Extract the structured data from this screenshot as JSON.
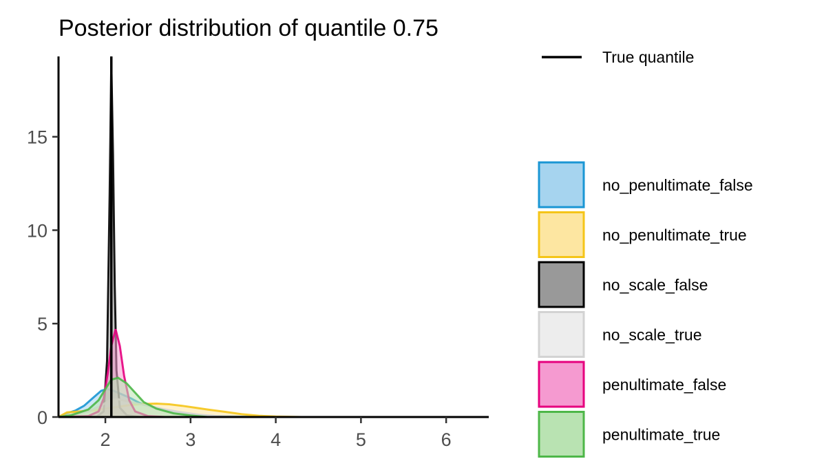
{
  "chart_data": {
    "type": "area",
    "title": "Posterior distribution of quantile 0.75",
    "xlabel": "",
    "ylabel": "",
    "xlim": [
      1.45,
      6.5
    ],
    "ylim": [
      0,
      19.3
    ],
    "x_ticks": [
      2,
      3,
      4,
      5,
      6
    ],
    "y_ticks": [
      0,
      5,
      10,
      15
    ],
    "grid": false,
    "legend_position": "right",
    "true_quantile": {
      "label": "True quantile",
      "x": 2.07,
      "color": "#000000"
    },
    "series": [
      {
        "name": "no_penultimate_false",
        "color": "#1a96d4",
        "fill": "#a6d4ef",
        "points": [
          [
            1.45,
            0.0
          ],
          [
            1.55,
            0.2
          ],
          [
            1.65,
            0.35
          ],
          [
            1.75,
            0.6
          ],
          [
            1.85,
            1.0
          ],
          [
            1.95,
            1.4
          ],
          [
            2.02,
            1.5
          ],
          [
            2.1,
            1.4
          ],
          [
            2.2,
            1.2
          ],
          [
            2.3,
            1.0
          ],
          [
            2.4,
            0.75
          ],
          [
            2.6,
            0.45
          ],
          [
            2.8,
            0.25
          ],
          [
            3.0,
            0.12
          ],
          [
            3.3,
            0.05
          ],
          [
            3.6,
            0.02
          ],
          [
            4.0,
            0.0
          ]
        ]
      },
      {
        "name": "no_penultimate_true",
        "color": "#f5c518",
        "fill": "#fde6a1",
        "points": [
          [
            1.45,
            0.0
          ],
          [
            1.55,
            0.25
          ],
          [
            1.7,
            0.3
          ],
          [
            1.85,
            0.35
          ],
          [
            2.0,
            0.45
          ],
          [
            2.15,
            0.55
          ],
          [
            2.3,
            0.65
          ],
          [
            2.45,
            0.7
          ],
          [
            2.6,
            0.72
          ],
          [
            2.75,
            0.68
          ],
          [
            2.9,
            0.6
          ],
          [
            3.05,
            0.5
          ],
          [
            3.2,
            0.4
          ],
          [
            3.4,
            0.28
          ],
          [
            3.6,
            0.15
          ],
          [
            3.8,
            0.07
          ],
          [
            4.0,
            0.03
          ],
          [
            4.3,
            0.0
          ]
        ]
      },
      {
        "name": "no_scale_false",
        "color": "#000000",
        "fill": "#999999",
        "points": [
          [
            1.45,
            0.0
          ],
          [
            1.9,
            0.02
          ],
          [
            1.98,
            0.3
          ],
          [
            2.02,
            3.0
          ],
          [
            2.05,
            12.0
          ],
          [
            2.07,
            19.0
          ],
          [
            2.09,
            14.0
          ],
          [
            2.11,
            7.0
          ],
          [
            2.13,
            2.5
          ],
          [
            2.17,
            0.5
          ],
          [
            2.25,
            0.1
          ],
          [
            2.4,
            0.0
          ]
        ]
      },
      {
        "name": "no_scale_true",
        "color": "#d3d3d3",
        "fill": "#ededed",
        "points": [
          [
            1.45,
            0.0
          ],
          [
            1.6,
            0.1
          ],
          [
            1.8,
            0.3
          ],
          [
            1.95,
            0.6
          ],
          [
            2.05,
            0.9
          ],
          [
            2.15,
            0.95
          ],
          [
            2.3,
            0.8
          ],
          [
            2.5,
            0.6
          ],
          [
            2.7,
            0.4
          ],
          [
            2.9,
            0.25
          ],
          [
            3.1,
            0.12
          ],
          [
            3.3,
            0.05
          ],
          [
            3.6,
            0.0
          ]
        ]
      },
      {
        "name": "penultimate_false",
        "color": "#e6007e",
        "fill": "#f59ad0",
        "points": [
          [
            1.45,
            0.0
          ],
          [
            1.8,
            0.05
          ],
          [
            1.92,
            0.3
          ],
          [
            1.98,
            1.0
          ],
          [
            2.03,
            2.4
          ],
          [
            2.07,
            3.8
          ],
          [
            2.12,
            4.7
          ],
          [
            2.17,
            3.8
          ],
          [
            2.22,
            2.2
          ],
          [
            2.28,
            0.9
          ],
          [
            2.35,
            0.3
          ],
          [
            2.5,
            0.05
          ],
          [
            2.7,
            0.0
          ]
        ]
      },
      {
        "name": "penultimate_true",
        "color": "#4db748",
        "fill": "#b9e3b2",
        "points": [
          [
            1.45,
            0.0
          ],
          [
            1.6,
            0.1
          ],
          [
            1.8,
            0.4
          ],
          [
            1.92,
            0.9
          ],
          [
            2.0,
            1.5
          ],
          [
            2.07,
            2.0
          ],
          [
            2.15,
            2.1
          ],
          [
            2.25,
            1.8
          ],
          [
            2.35,
            1.3
          ],
          [
            2.45,
            0.8
          ],
          [
            2.6,
            0.45
          ],
          [
            2.8,
            0.2
          ],
          [
            3.0,
            0.08
          ],
          [
            3.2,
            0.0
          ]
        ]
      }
    ]
  }
}
